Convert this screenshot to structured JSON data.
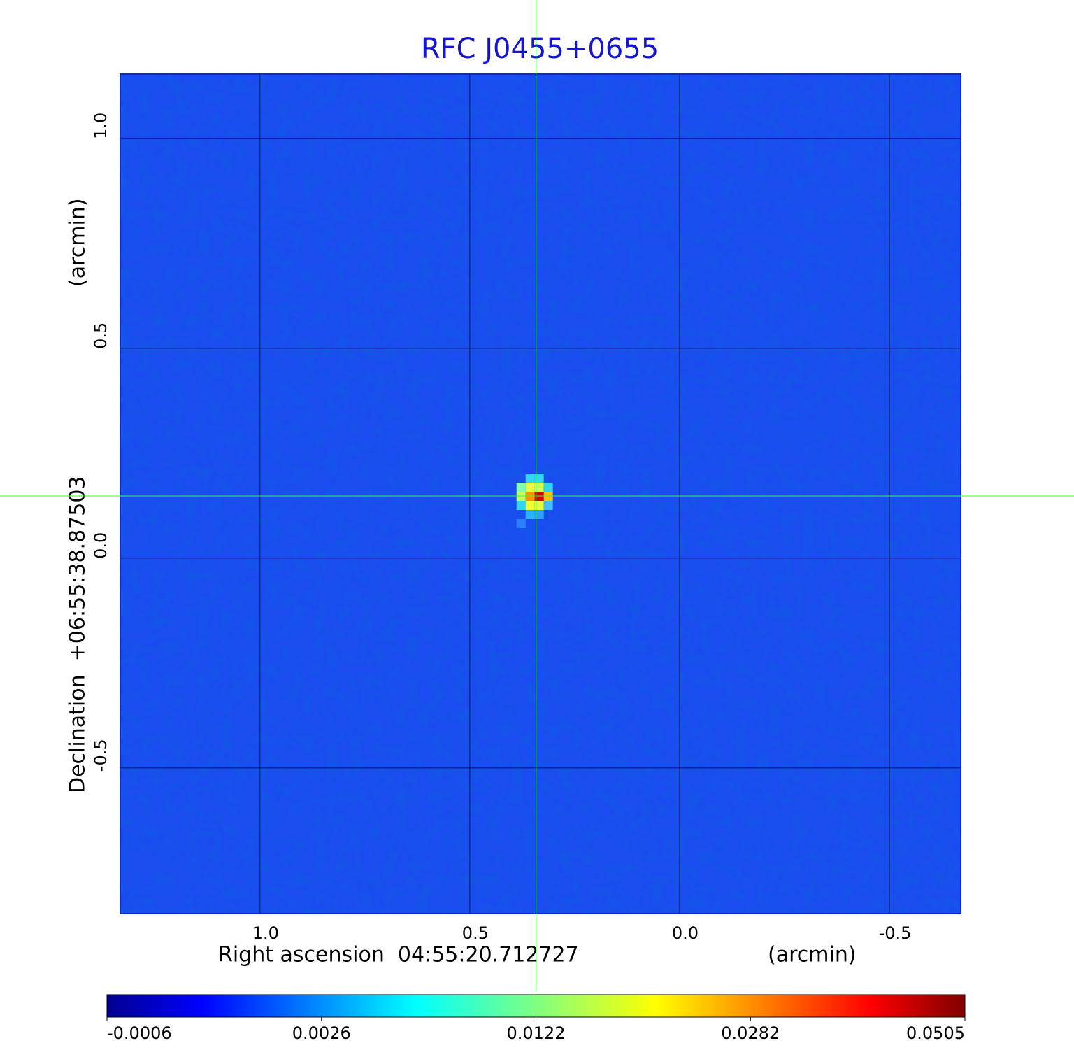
{
  "chart_data": {
    "type": "image",
    "title": "RFC J0455+0655",
    "x_label": "Right ascension  04:55:20.712727",
    "x_unit": "(arcmin)",
    "y_label": "Declination  +06:55:38.87503",
    "y_unit": "(arcmin)",
    "xlim": [
      1.333,
      -0.67
    ],
    "ylim": [
      -0.847,
      1.153
    ],
    "xticks": [
      {
        "value": 1,
        "label": "1.0"
      },
      0.5,
      {
        "value": 0,
        "label": "0.0"
      },
      -0.5
    ],
    "yticks": [
      -0.5,
      {
        "value": 0,
        "label": "0.0"
      },
      0.5,
      {
        "value": 1,
        "label": "1.0"
      }
    ],
    "grid": true,
    "crosshair": {
      "x": 0.342,
      "y": 0.148,
      "color": "#33ff33"
    },
    "colormap": "jet",
    "colorbar_ticks": [
      -0.0006,
      0.0026,
      0.0122,
      0.0282,
      0.0505
    ]
  }
}
